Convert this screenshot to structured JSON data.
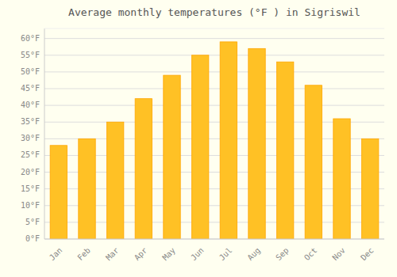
{
  "chart_data": {
    "type": "bar",
    "title": "Average monthly temperatures (°F ) in Sigriswil",
    "categories": [
      "Jan",
      "Feb",
      "Mar",
      "Apr",
      "May",
      "Jun",
      "Jul",
      "Aug",
      "Sep",
      "Oct",
      "Nov",
      "Dec"
    ],
    "values": [
      28,
      30,
      35,
      42,
      49,
      55,
      59,
      57,
      53,
      46,
      36,
      30
    ],
    "color": "#FFC125",
    "ylim": [
      0,
      63
    ],
    "yticks": [
      {
        "value": 0,
        "label": "0°F"
      },
      {
        "value": 5,
        "label": "5°F"
      },
      {
        "value": 10,
        "label": "10°F"
      },
      {
        "value": 15,
        "label": "15°F"
      },
      {
        "value": 20,
        "label": "20°F"
      },
      {
        "value": 25,
        "label": "25°F"
      },
      {
        "value": 30,
        "label": "30°F"
      },
      {
        "value": 35,
        "label": "35°F"
      },
      {
        "value": 40,
        "label": "40°F"
      },
      {
        "value": 45,
        "label": "45°F"
      },
      {
        "value": 50,
        "label": "50°F"
      },
      {
        "value": 55,
        "label": "55°F"
      },
      {
        "value": 60,
        "label": "60°F"
      }
    ],
    "grid": true
  }
}
